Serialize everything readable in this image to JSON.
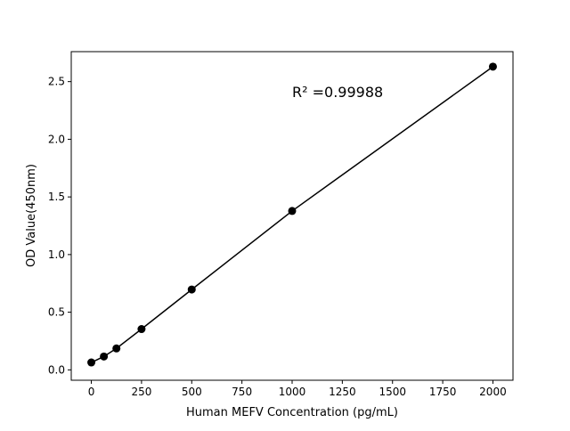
{
  "chart_data": {
    "type": "scatter",
    "title": "",
    "xlabel": "Human MEFV Concentration (pg/mL)",
    "ylabel": "OD Value(450nm)",
    "xlim": [
      -100,
      2100
    ],
    "ylim": [
      -0.09,
      2.76
    ],
    "xticks": [
      0,
      250,
      500,
      750,
      1000,
      1250,
      1500,
      1750,
      2000
    ],
    "yticks": [
      0.0,
      0.5,
      1.0,
      1.5,
      2.0,
      2.5
    ],
    "ytick_labels": [
      "0.0",
      "0.5",
      "1.0",
      "1.5",
      "2.0",
      "2.5"
    ],
    "grid": false,
    "points": {
      "x": [
        0,
        62.5,
        125,
        250,
        500,
        1000,
        2000
      ],
      "y": [
        0.064,
        0.116,
        0.186,
        0.354,
        0.697,
        1.378,
        2.63
      ]
    },
    "fit_line": true,
    "annotation": "R² =0.99988",
    "color": "#000000"
  }
}
